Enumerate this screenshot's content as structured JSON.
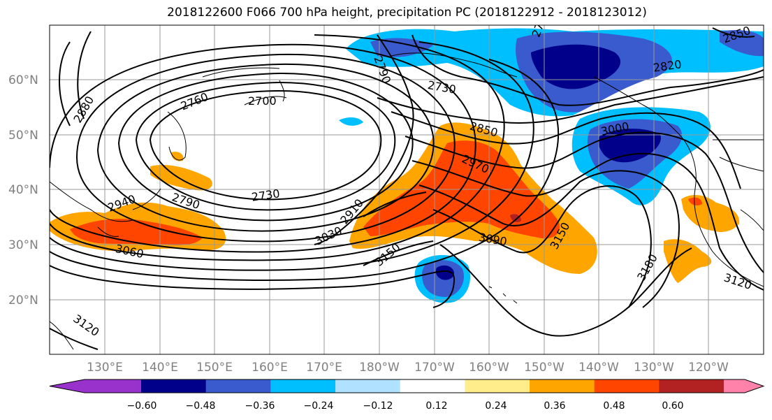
{
  "title": "2018122600 F066 700 hPa height, precipitation PC (2018122912 - 2018123012)",
  "lat_labels": [
    "60°N",
    "50°N",
    "40°N",
    "30°N",
    "20°N"
  ],
  "lon_labels": [
    "130°E",
    "140°E",
    "150°E",
    "160°E",
    "170°E",
    "180°W",
    "170°W",
    "160°W",
    "150°W",
    "140°W",
    "130°W",
    "120°W"
  ],
  "contour_labels": [
    "2880",
    "2760",
    "2700",
    "2790",
    "2730",
    "2730",
    "2820",
    "2850",
    "2970",
    "3000",
    "2910",
    "3030",
    "3150",
    "3090",
    "3150",
    "3180",
    "3120",
    "3060",
    "3120",
    "2940",
    "2790",
    "2850",
    "2700"
  ],
  "colorbar": {
    "colors": [
      "#9932CC",
      "#00008B",
      "#3A5BCD",
      "#00BFFF",
      "#B0E2FF",
      "#FFFFFF",
      "#FFEC8B",
      "#FFA500",
      "#FF4500",
      "#B22222",
      "#FF82AB"
    ],
    "ticks": [
      "−0.60",
      "−0.48",
      "−0.36",
      "−0.24",
      "−0.12",
      "0.12",
      "0.24",
      "0.36",
      "0.48",
      "0.60"
    ]
  }
}
